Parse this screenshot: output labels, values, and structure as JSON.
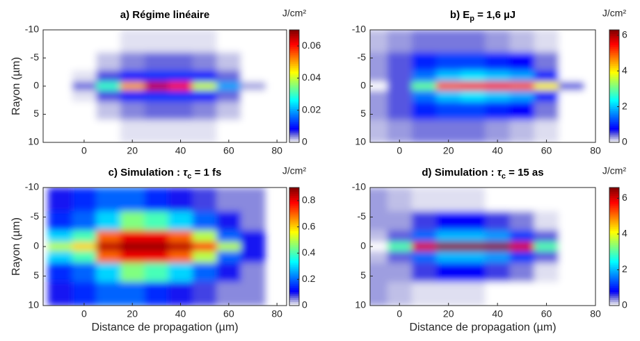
{
  "chart_data": [
    {
      "type": "heatmap",
      "colormap": "jet",
      "y_direction": "reverse",
      "title": [
        {
          "text": "a) Régime linéaire",
          "style": "normal"
        }
      ],
      "ylabel": "Rayon (µm)",
      "colorbar_label": "J/cm²",
      "x": [
        -10,
        0,
        10,
        20,
        30,
        40,
        50,
        60,
        70
      ],
      "y": [
        -8,
        -4,
        -1.5,
        0,
        1.5,
        4,
        8
      ],
      "z": [
        [
          0,
          0,
          0,
          0.001,
          0.001,
          0.001,
          0.001,
          0,
          0
        ],
        [
          0,
          0,
          0.002,
          0.004,
          0.005,
          0.005,
          0.004,
          0.002,
          0
        ],
        [
          0,
          0.001,
          0.006,
          0.01,
          0.012,
          0.012,
          0.01,
          0.005,
          0
        ],
        [
          0,
          0.005,
          0.03,
          0.05,
          0.065,
          0.06,
          0.04,
          0.02,
          0.003
        ],
        [
          0,
          0.001,
          0.006,
          0.01,
          0.012,
          0.012,
          0.01,
          0.005,
          0
        ],
        [
          0,
          0,
          0.002,
          0.004,
          0.005,
          0.005,
          0.004,
          0.002,
          0
        ],
        [
          0,
          0,
          0,
          0.001,
          0.001,
          0.001,
          0.001,
          0,
          0
        ]
      ],
      "xlim": [
        -17,
        84
      ],
      "ylim": [
        -10,
        10
      ],
      "xticks": [
        0,
        20,
        40,
        60,
        80
      ],
      "yticks": [
        -10,
        -5,
        0,
        5,
        10
      ],
      "zlim": [
        0,
        0.07
      ],
      "zticks": [
        0,
        0.02,
        0.04,
        0.06
      ]
    },
    {
      "type": "heatmap",
      "colormap": "jet",
      "y_direction": "reverse",
      "title": [
        {
          "text": "b) E",
          "style": "normal"
        },
        {
          "text": "p",
          "style": "sub"
        },
        {
          "text": " = 1,6 µJ",
          "style": "normal"
        }
      ],
      "colorbar_label": "J/cm²",
      "x": [
        -10,
        0,
        10,
        20,
        30,
        40,
        50,
        60,
        70
      ],
      "y": [
        -8,
        -4,
        -1.5,
        0,
        1.5,
        4,
        8
      ],
      "z": [
        [
          0.2,
          0.3,
          0.4,
          0.4,
          0.4,
          0.3,
          0.2,
          0.1,
          0
        ],
        [
          0.3,
          0.5,
          1,
          1.2,
          1.2,
          1,
          0.8,
          0.4,
          0
        ],
        [
          0.3,
          0.5,
          1.5,
          2,
          2.2,
          2,
          1.8,
          1,
          0
        ],
        [
          0,
          0.5,
          3,
          5,
          5.5,
          5.5,
          5,
          4,
          0.5
        ],
        [
          0.3,
          0.5,
          1.5,
          2,
          2.2,
          2,
          1.8,
          1,
          0
        ],
        [
          0.3,
          0.5,
          1,
          1.2,
          1.2,
          1,
          0.8,
          0.4,
          0
        ],
        [
          0.2,
          0.3,
          0.4,
          0.4,
          0.4,
          0.3,
          0.2,
          0.1,
          0
        ]
      ],
      "xlim": [
        -12,
        80
      ],
      "ylim": [
        -10,
        10
      ],
      "xticks": [
        0,
        20,
        40,
        60,
        80
      ],
      "yticks": [
        -10,
        -5,
        0,
        5,
        10
      ],
      "zlim": [
        0,
        6.3
      ],
      "zticks": [
        0,
        2,
        4,
        6
      ]
    },
    {
      "type": "heatmap",
      "colormap": "jet",
      "y_direction": "reverse",
      "title": [
        {
          "text": "c) Simulation : ",
          "style": "normal"
        },
        {
          "text": "τ",
          "style": "italic"
        },
        {
          "text": "c",
          "style": "sub"
        },
        {
          "text": " = 1 fs",
          "style": "normal"
        }
      ],
      "ylabel": "Rayon (µm)",
      "xlabel": "Distance de propagation (µm)",
      "colorbar_label": "J/cm²",
      "x": [
        -10,
        0,
        10,
        20,
        30,
        40,
        50,
        60,
        70
      ],
      "y": [
        -8,
        -4,
        -1.5,
        0,
        1.5,
        4,
        8
      ],
      "z": [
        [
          0.1,
          0.15,
          0.2,
          0.2,
          0.15,
          0.1,
          0.08,
          0.05,
          0.05
        ],
        [
          0.15,
          0.2,
          0.3,
          0.45,
          0.4,
          0.3,
          0.2,
          0.1,
          0.05
        ],
        [
          0.3,
          0.4,
          0.7,
          0.8,
          0.8,
          0.7,
          0.5,
          0.2,
          0.1
        ],
        [
          0.5,
          0.6,
          0.85,
          0.88,
          0.88,
          0.85,
          0.75,
          0.5,
          0.1
        ],
        [
          0.3,
          0.4,
          0.7,
          0.8,
          0.8,
          0.7,
          0.5,
          0.2,
          0.1
        ],
        [
          0.15,
          0.2,
          0.3,
          0.45,
          0.4,
          0.3,
          0.2,
          0.1,
          0.05
        ],
        [
          0.1,
          0.15,
          0.2,
          0.2,
          0.15,
          0.1,
          0.08,
          0.05,
          0.05
        ]
      ],
      "xlim": [
        -17,
        84
      ],
      "ylim": [
        -10,
        10
      ],
      "xticks": [
        0,
        20,
        40,
        60,
        80
      ],
      "yticks": [
        -10,
        -5,
        0,
        5,
        10
      ],
      "zlim": [
        0,
        0.9
      ],
      "zticks": [
        0,
        0.2,
        0.4,
        0.6,
        0.8
      ]
    },
    {
      "type": "heatmap",
      "colormap": "jet",
      "y_direction": "reverse",
      "title": [
        {
          "text": "d) Simulation : ",
          "style": "normal"
        },
        {
          "text": "τ",
          "style": "italic"
        },
        {
          "text": "c",
          "style": "sub"
        },
        {
          "text": " = 15 as",
          "style": "normal"
        }
      ],
      "xlabel": "Distance de propagation (µm)",
      "colorbar_label": "J/cm²",
      "x": [
        -10,
        0,
        10,
        20,
        30,
        40,
        50,
        60,
        70
      ],
      "y": [
        -8,
        -4,
        -1.5,
        0,
        1.5,
        4,
        8
      ],
      "z": [
        [
          0.3,
          0.2,
          0.1,
          0.1,
          0.1,
          0,
          0,
          0,
          0
        ],
        [
          0.3,
          0.3,
          0.6,
          0.8,
          0.8,
          0.6,
          0.4,
          0.1,
          0
        ],
        [
          0.2,
          0.5,
          1.5,
          2,
          2,
          1.8,
          1.2,
          0.5,
          0
        ],
        [
          0,
          3,
          6,
          6.5,
          6.5,
          6.5,
          6,
          3,
          0
        ],
        [
          0.2,
          0.5,
          1.5,
          2,
          2,
          1.8,
          1.2,
          0.5,
          0
        ],
        [
          0.3,
          0.3,
          0.6,
          0.8,
          0.8,
          0.6,
          0.4,
          0.1,
          0
        ],
        [
          0.3,
          0.2,
          0.1,
          0.1,
          0.1,
          0,
          0,
          0,
          0
        ]
      ],
      "xlim": [
        -12,
        80
      ],
      "ylim": [
        -10,
        10
      ],
      "xticks": [
        0,
        20,
        40,
        60,
        80
      ],
      "yticks": [
        -10,
        -5,
        0,
        5,
        10
      ],
      "zlim": [
        0,
        6.6
      ],
      "zticks": [
        0,
        2,
        4,
        6
      ]
    }
  ]
}
